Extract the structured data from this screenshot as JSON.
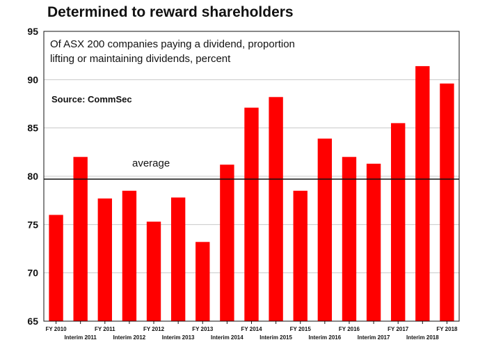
{
  "chart_data": {
    "type": "bar",
    "title": "Determined to reward shareholders",
    "subtitle_lines": [
      "Of ASX 200 companies paying a dividend, proportion",
      "lifting or maintaining dividends, percent"
    ],
    "source": "Source: CommSec",
    "categories": [
      "FY 2010",
      "Interim 2011",
      "FY 2011",
      "Interim 2012",
      "FY 2012",
      "Interim 2013",
      "FY 2013",
      "Interim 2014",
      "FY 2014",
      "Interim 2015",
      "FY 2015",
      "Interim 2016",
      "FY 2016",
      "Interim 2017",
      "FY 2017",
      "Interim 2018",
      "FY 2018"
    ],
    "values": [
      76.0,
      82.0,
      77.7,
      78.5,
      75.3,
      77.8,
      73.2,
      81.2,
      87.1,
      88.2,
      78.5,
      83.9,
      82.0,
      81.3,
      85.5,
      91.4,
      89.6
    ],
    "average": 79.7,
    "average_label": "average",
    "ylim": [
      65,
      95
    ],
    "yticks": [
      65,
      70,
      75,
      80,
      85,
      90,
      95
    ],
    "grid": true,
    "bar_color": "#ff0000",
    "xlabel": "",
    "ylabel": ""
  }
}
